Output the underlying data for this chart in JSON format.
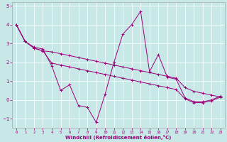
{
  "x": [
    0,
    1,
    2,
    3,
    4,
    5,
    6,
    7,
    8,
    9,
    10,
    11,
    12,
    13,
    14,
    15,
    16,
    17,
    18,
    19,
    20,
    21,
    22,
    23
  ],
  "y_main": [
    4.0,
    3.1,
    2.8,
    2.7,
    1.8,
    0.5,
    0.8,
    -0.3,
    -0.4,
    -1.2,
    0.3,
    2.0,
    3.5,
    4.0,
    4.7,
    1.5,
    2.4,
    1.2,
    1.1,
    0.1,
    -0.1,
    -0.1,
    0.0,
    0.2
  ],
  "y_upper": [
    4.0,
    3.1,
    2.75,
    2.6,
    2.55,
    2.45,
    2.35,
    2.25,
    2.15,
    2.05,
    1.95,
    1.85,
    1.75,
    1.65,
    1.55,
    1.45,
    1.35,
    1.25,
    1.15,
    0.65,
    0.45,
    0.35,
    0.25,
    0.15
  ],
  "y_lower": [
    4.0,
    3.1,
    2.75,
    2.6,
    1.95,
    1.85,
    1.75,
    1.65,
    1.55,
    1.45,
    1.35,
    1.25,
    1.15,
    1.05,
    0.95,
    0.85,
    0.75,
    0.65,
    0.55,
    0.05,
    -0.15,
    -0.15,
    -0.05,
    0.15
  ],
  "bg_color": "#c8e8e8",
  "line_color": "#990077",
  "xlabel": "Windchill (Refroidissement éolien,°C)",
  "ylim": [
    -1.5,
    5.2
  ],
  "xlim": [
    -0.5,
    23.5
  ],
  "yticks": [
    -1,
    0,
    1,
    2,
    3,
    4,
    5
  ],
  "xticks": [
    0,
    1,
    2,
    3,
    4,
    5,
    6,
    7,
    8,
    9,
    10,
    11,
    12,
    13,
    14,
    15,
    16,
    17,
    18,
    19,
    20,
    21,
    22,
    23
  ]
}
